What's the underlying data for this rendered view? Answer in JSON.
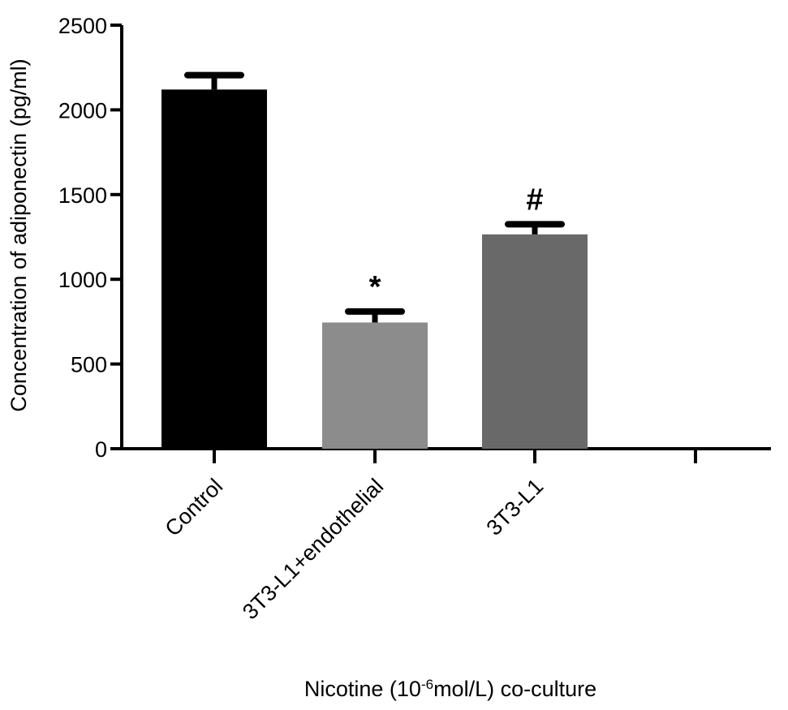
{
  "chart_data": {
    "type": "bar",
    "categories": [
      "Control",
      "3T3-L1+endothelial",
      "3T3-L1"
    ],
    "values": [
      2120,
      745,
      1265
    ],
    "error": [
      85,
      65,
      60
    ],
    "bar_colors": [
      "#000000",
      "#8c8c8c",
      "#696969"
    ],
    "significance": [
      "",
      "*",
      "#"
    ],
    "ylabel": "Concentration of adiponectin (pg/ml)",
    "xlabel": {
      "pre": "Nicotine (10",
      "sup": "-6",
      "post": "mol/L) co-culture"
    },
    "ylim": [
      0,
      2500
    ],
    "yticks": [
      0,
      500,
      1000,
      1500,
      2000,
      2500
    ],
    "grid": false
  }
}
